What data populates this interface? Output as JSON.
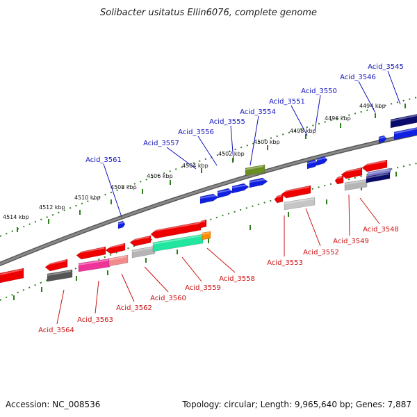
{
  "title": "Solibacter usitatus Ellin6076, complete genome",
  "footer": {
    "accession": "Accession: NC_008536",
    "summary": "Topology: circular; Length: 9,965,640 bp; Genes: 7,887"
  },
  "colors": {
    "forward_label": "#1111bb",
    "reverse_label": "#cc1111",
    "backbone": "#8a8a8a",
    "tick": "#2e7d1e"
  },
  "kbp_labels": [
    "4514 kbp",
    "4512 kbp",
    "4510 kbp",
    "4508 kbp",
    "4506 kbp",
    "4504 kbp",
    "4502 kbp",
    "4500 kbp",
    "4498 kbp",
    "4496 kbp",
    "4494 kbp"
  ],
  "forward_genes": [
    "Acid_3561",
    "Acid_3557",
    "Acid_3556",
    "Acid_3555",
    "Acid_3554",
    "Acid_3551",
    "Acid_3550",
    "Acid_3546",
    "Acid_3545"
  ],
  "reverse_genes": [
    "Acid_3564",
    "Acid_3563",
    "Acid_3562",
    "Acid_3560",
    "Acid_3559",
    "Acid_3558",
    "Acid_3553",
    "Acid_3552",
    "Acid_3549",
    "Acid_3548"
  ]
}
